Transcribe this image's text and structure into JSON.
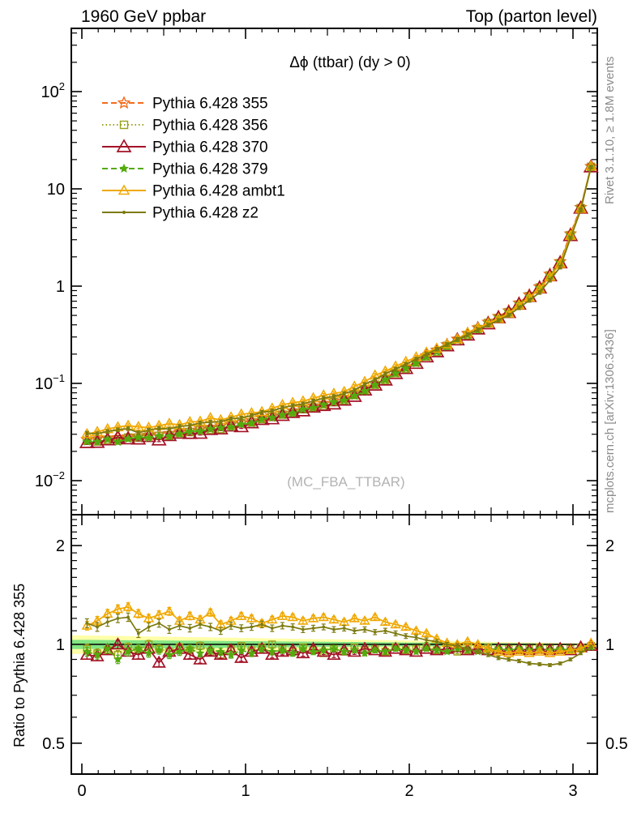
{
  "header": {
    "left_title": "1960 GeV ppbar",
    "right_title": "Top (parton level)"
  },
  "right_margin": {
    "top_text": "Rivet 3.1.10, ≥ 1.8M events",
    "bottom_text": "mcplots.cern.ch [arXiv:1306.3436]"
  },
  "watermark_text": "(MC_FBA_TTBAR)",
  "chart_data": {
    "type": "line",
    "title": "Δϕ (ttbar) (dy > 0)",
    "xlabel": "",
    "xlim": [
      -0.064,
      3.1416
    ],
    "xticks": [
      0,
      1,
      2,
      3
    ],
    "x_minor_step": 0.1,
    "main_panel": {
      "yscale": "log",
      "ylim": [
        0.0045,
        450
      ],
      "ytick_exponents": [
        2,
        1,
        0,
        -1,
        -2
      ]
    },
    "ratio_panel": {
      "yscale": "log",
      "ylim": [
        0.4,
        2.5
      ],
      "yticks": [
        0.5,
        1,
        2
      ],
      "ylabel": "Ratio to Pythia 6.428 355",
      "band_outer_color": "#ffffa8",
      "band_inner_color": "#82e582",
      "band_outer_halfwidth_start": 0.065,
      "band_outer_halfwidth_end": 0.006,
      "reference_line": 1
    },
    "bin_centers": [
      0.0314,
      0.0942,
      0.1571,
      0.2199,
      0.2827,
      0.3456,
      0.4084,
      0.4712,
      0.5341,
      0.5969,
      0.6597,
      0.7226,
      0.7854,
      0.8482,
      0.9111,
      0.9739,
      1.0367,
      1.0996,
      1.1624,
      1.2252,
      1.2881,
      1.3509,
      1.4137,
      1.4766,
      1.5394,
      1.6022,
      1.6651,
      1.7279,
      1.7907,
      1.8536,
      1.9164,
      1.9792,
      2.042,
      2.1049,
      2.1677,
      2.2305,
      2.2934,
      2.3562,
      2.419,
      2.4819,
      2.5447,
      2.6075,
      2.6704,
      2.7332,
      2.796,
      2.8589,
      2.9217,
      2.9845,
      3.0474,
      3.1102
    ],
    "reference_values": [
      0.0265,
      0.0269,
      0.0274,
      0.0278,
      0.0283,
      0.0288,
      0.0293,
      0.0298,
      0.0306,
      0.0317,
      0.0329,
      0.0341,
      0.0353,
      0.0366,
      0.038,
      0.0394,
      0.0414,
      0.0439,
      0.0465,
      0.0493,
      0.0523,
      0.0555,
      0.0588,
      0.0624,
      0.0661,
      0.0701,
      0.0774,
      0.0881,
      0.1,
      0.114,
      0.13,
      0.148,
      0.169,
      0.193,
      0.22,
      0.251,
      0.286,
      0.327,
      0.374,
      0.427,
      0.488,
      0.558,
      0.672,
      0.815,
      0.988,
      1.33,
      1.79,
      3.45,
      6.46,
      17.0
    ],
    "series": [
      {
        "name": "Pythia 6.428 355",
        "color": "#f26c1b",
        "line_style": "dashed",
        "marker": "open-star",
        "is_reference": true
      },
      {
        "name": "Pythia 6.428 356",
        "color": "#9aa11c",
        "line_style": "dotted",
        "marker": "open-square",
        "ratio": [
          0.97,
          0.94,
          0.96,
          0.93,
          0.98,
          0.96,
          1.0,
          0.97,
          0.95,
          0.98,
          0.96,
          0.99,
          0.95,
          0.93,
          0.97,
          0.99,
          0.96,
          0.98,
          1.0,
          0.97,
          0.95,
          0.98,
          0.96,
          0.94,
          0.97,
          0.95,
          0.98,
          0.96,
          0.97,
          0.95,
          0.98,
          0.96,
          0.97,
          0.98,
          0.96,
          0.97,
          0.95,
          0.96,
          0.97,
          0.98,
          0.96,
          0.97,
          0.96,
          0.97,
          0.98,
          0.97,
          0.96,
          0.97,
          0.98,
          0.99
        ]
      },
      {
        "name": "Pythia 6.428 370",
        "color": "#a31226",
        "line_style": "solid",
        "marker": "open-triangle-large",
        "ratio": [
          0.93,
          0.92,
          0.96,
          1.0,
          0.95,
          0.93,
          0.97,
          0.88,
          0.95,
          0.97,
          0.93,
          0.9,
          0.95,
          0.93,
          0.96,
          0.91,
          0.95,
          0.97,
          0.93,
          0.95,
          0.96,
          0.94,
          0.97,
          0.95,
          0.93,
          0.96,
          0.95,
          0.97,
          0.96,
          0.95,
          0.97,
          0.96,
          0.95,
          0.97,
          0.96,
          0.97,
          0.98,
          0.96,
          0.97,
          0.96,
          0.97,
          0.96,
          0.97,
          0.96,
          0.97,
          0.96,
          0.97,
          0.96,
          0.98,
          0.99
        ]
      },
      {
        "name": "Pythia 6.428 379",
        "color": "#55aa0f",
        "line_style": "dashed",
        "marker": "star-small",
        "ratio": [
          0.95,
          0.93,
          0.97,
          0.9,
          0.95,
          0.97,
          0.94,
          0.96,
          0.93,
          0.95,
          0.97,
          0.94,
          0.96,
          0.95,
          0.93,
          0.96,
          0.94,
          0.97,
          0.95,
          0.96,
          0.94,
          0.97,
          0.95,
          0.96,
          0.97,
          0.95,
          0.96,
          0.94,
          0.96,
          0.95,
          0.97,
          0.96,
          0.95,
          0.97,
          0.96,
          0.95,
          0.97,
          0.96,
          0.95,
          0.96,
          0.97,
          0.96,
          0.97,
          0.96,
          0.97,
          0.96,
          0.97,
          0.96,
          0.97,
          0.98
        ]
      },
      {
        "name": "Pythia 6.428 ambt1",
        "color": "#f0a800",
        "line_style": "solid",
        "marker": "open-triangle",
        "ratio": [
          1.14,
          1.18,
          1.24,
          1.28,
          1.3,
          1.24,
          1.2,
          1.23,
          1.26,
          1.18,
          1.22,
          1.19,
          1.25,
          1.15,
          1.18,
          1.22,
          1.2,
          1.16,
          1.19,
          1.22,
          1.21,
          1.18,
          1.2,
          1.21,
          1.19,
          1.17,
          1.2,
          1.18,
          1.21,
          1.17,
          1.15,
          1.13,
          1.1,
          1.08,
          1.04,
          1.01,
          1.0,
          1.02,
          1.0,
          0.97,
          0.95,
          0.94,
          0.95,
          0.94,
          0.95,
          0.94,
          0.95,
          0.96,
          0.97,
          1.01
        ]
      },
      {
        "name": "Pythia 6.428 z2",
        "color": "#7d7b10",
        "line_style": "solid",
        "marker": "dot",
        "ratio": [
          1.16,
          1.13,
          1.17,
          1.2,
          1.21,
          1.08,
          1.13,
          1.16,
          1.11,
          1.14,
          1.12,
          1.15,
          1.13,
          1.1,
          1.14,
          1.12,
          1.13,
          1.15,
          1.12,
          1.14,
          1.13,
          1.11,
          1.12,
          1.13,
          1.11,
          1.12,
          1.1,
          1.11,
          1.09,
          1.1,
          1.08,
          1.06,
          1.05,
          1.03,
          1.02,
          1.0,
          0.99,
          0.97,
          0.95,
          0.93,
          0.91,
          0.9,
          0.89,
          0.875,
          0.87,
          0.865,
          0.875,
          0.9,
          0.94,
          0.985
        ]
      }
    ]
  }
}
